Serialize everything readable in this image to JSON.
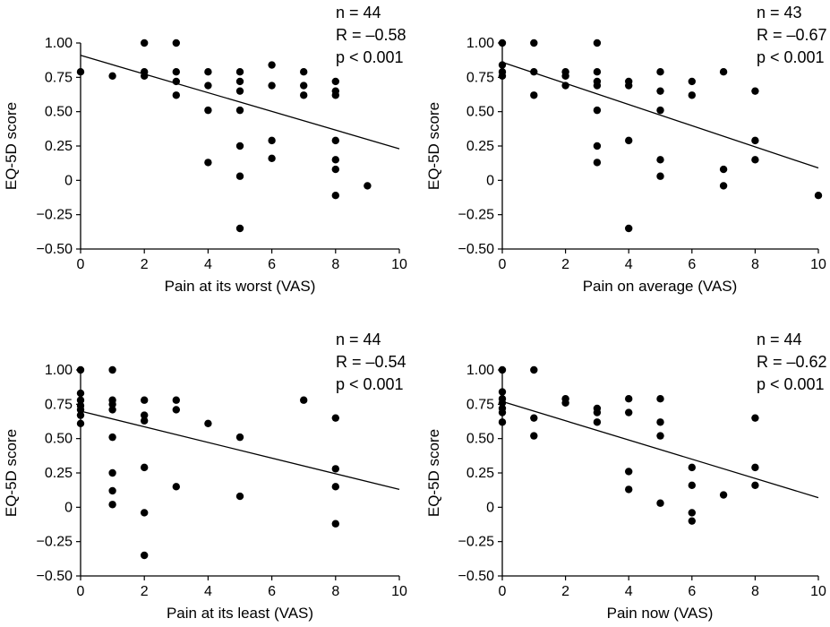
{
  "chart_data": [
    {
      "type": "scatter",
      "xlabel": "Pain at its worst (VAS)",
      "ylabel": "EQ-5D score",
      "xlim": [
        0,
        10
      ],
      "ylim": [
        -0.5,
        1.0
      ],
      "xticks": [
        "0",
        "2",
        "4",
        "6",
        "8",
        "10"
      ],
      "yticks": [
        "−0.50",
        "−0.25",
        "0",
        "0.25",
        "0.50",
        "0.75",
        "1.00"
      ],
      "stats": [
        "n = 44",
        "R = –0.58",
        "p < 0.001"
      ],
      "points": [
        [
          0,
          0.79
        ],
        [
          1,
          0.76
        ],
        [
          2,
          1.0
        ],
        [
          2,
          0.79
        ],
        [
          2,
          0.76
        ],
        [
          3,
          1.0
        ],
        [
          3,
          0.79
        ],
        [
          3,
          0.72
        ],
        [
          3,
          0.62
        ],
        [
          4,
          0.79
        ],
        [
          4,
          0.69
        ],
        [
          4,
          0.51
        ],
        [
          4,
          0.13
        ],
        [
          5,
          0.79
        ],
        [
          5,
          0.72
        ],
        [
          5,
          0.65
        ],
        [
          5,
          0.51
        ],
        [
          5,
          0.25
        ],
        [
          5,
          0.03
        ],
        [
          5,
          -0.35
        ],
        [
          6,
          0.84
        ],
        [
          6,
          0.69
        ],
        [
          6,
          0.29
        ],
        [
          6,
          0.16
        ],
        [
          7,
          0.79
        ],
        [
          7,
          0.69
        ],
        [
          7,
          0.62
        ],
        [
          8,
          0.72
        ],
        [
          8,
          0.65
        ],
        [
          8,
          0.62
        ],
        [
          8,
          0.29
        ],
        [
          8,
          0.15
        ],
        [
          8,
          0.08
        ],
        [
          8,
          -0.11
        ],
        [
          9,
          -0.04
        ]
      ],
      "trend": [
        [
          0,
          0.91
        ],
        [
          10,
          0.23
        ]
      ]
    },
    {
      "type": "scatter",
      "xlabel": "Pain on average (VAS)",
      "ylabel": "EQ-5D score",
      "xlim": [
        0,
        10
      ],
      "ylim": [
        -0.5,
        1.0
      ],
      "xticks": [
        "0",
        "2",
        "4",
        "6",
        "8",
        "10"
      ],
      "yticks": [
        "−0.50",
        "−0.25",
        "0",
        "0.25",
        "0.50",
        "0.75",
        "1.00"
      ],
      "stats": [
        "n = 43",
        "R = –0.67",
        "p < 0.001"
      ],
      "points": [
        [
          0,
          1.0
        ],
        [
          0,
          0.84
        ],
        [
          0,
          0.79
        ],
        [
          0,
          0.76
        ],
        [
          1,
          1.0
        ],
        [
          1,
          0.79
        ],
        [
          1,
          0.62
        ],
        [
          2,
          0.79
        ],
        [
          2,
          0.76
        ],
        [
          2,
          0.69
        ],
        [
          3,
          1.0
        ],
        [
          3,
          0.79
        ],
        [
          3,
          0.72
        ],
        [
          3,
          0.69
        ],
        [
          3,
          0.51
        ],
        [
          3,
          0.25
        ],
        [
          3,
          0.13
        ],
        [
          4,
          0.72
        ],
        [
          4,
          0.69
        ],
        [
          4,
          0.29
        ],
        [
          4,
          -0.35
        ],
        [
          5,
          0.79
        ],
        [
          5,
          0.65
        ],
        [
          5,
          0.51
        ],
        [
          5,
          0.15
        ],
        [
          5,
          0.03
        ],
        [
          6,
          0.72
        ],
        [
          6,
          0.62
        ],
        [
          7,
          0.79
        ],
        [
          7,
          0.08
        ],
        [
          7,
          -0.04
        ],
        [
          8,
          0.65
        ],
        [
          8,
          0.29
        ],
        [
          8,
          0.15
        ],
        [
          10,
          -0.11
        ]
      ],
      "trend": [
        [
          0,
          0.86
        ],
        [
          10,
          0.09
        ]
      ]
    },
    {
      "type": "scatter",
      "xlabel": "Pain at its least (VAS)",
      "ylabel": "EQ-5D score",
      "xlim": [
        0,
        10
      ],
      "ylim": [
        -0.5,
        1.0
      ],
      "xticks": [
        "0",
        "2",
        "4",
        "6",
        "8",
        "10"
      ],
      "yticks": [
        "−0.50",
        "−0.25",
        "0",
        "0.25",
        "0.50",
        "0.75",
        "1.00"
      ],
      "stats": [
        "n = 44",
        "R = –0.54",
        "p < 0.001"
      ],
      "points": [
        [
          0,
          1.0
        ],
        [
          0,
          0.83
        ],
        [
          0,
          0.78
        ],
        [
          0,
          0.74
        ],
        [
          0,
          0.71
        ],
        [
          0,
          0.67
        ],
        [
          0,
          0.61
        ],
        [
          1,
          1.0
        ],
        [
          1,
          0.78
        ],
        [
          1,
          0.75
        ],
        [
          1,
          0.71
        ],
        [
          1,
          0.51
        ],
        [
          1,
          0.25
        ],
        [
          1,
          0.12
        ],
        [
          1,
          0.02
        ],
        [
          2,
          0.78
        ],
        [
          2,
          0.67
        ],
        [
          2,
          0.63
        ],
        [
          2,
          0.29
        ],
        [
          2,
          -0.04
        ],
        [
          2,
          -0.35
        ],
        [
          3,
          0.78
        ],
        [
          3,
          0.71
        ],
        [
          3,
          0.15
        ],
        [
          4,
          0.61
        ],
        [
          5,
          0.51
        ],
        [
          5,
          0.08
        ],
        [
          7,
          0.78
        ],
        [
          8,
          0.65
        ],
        [
          8,
          0.28
        ],
        [
          8,
          0.15
        ],
        [
          8,
          -0.12
        ]
      ],
      "trend": [
        [
          0,
          0.7
        ],
        [
          10,
          0.13
        ]
      ]
    },
    {
      "type": "scatter",
      "xlabel": "Pain now (VAS)",
      "ylabel": "EQ-5D score",
      "xlim": [
        0,
        10
      ],
      "ylim": [
        -0.5,
        1.0
      ],
      "xticks": [
        "0",
        "2",
        "4",
        "6",
        "8",
        "10"
      ],
      "yticks": [
        "−0.50",
        "−0.25",
        "0",
        "0.25",
        "0.50",
        "0.75",
        "1.00"
      ],
      "stats": [
        "n = 44",
        "R = –0.62",
        "p < 0.001"
      ],
      "points": [
        [
          0,
          1.0
        ],
        [
          0,
          0.84
        ],
        [
          0,
          0.79
        ],
        [
          0,
          0.76
        ],
        [
          0,
          0.72
        ],
        [
          0,
          0.69
        ],
        [
          0,
          0.62
        ],
        [
          1,
          1.0
        ],
        [
          1,
          0.65
        ],
        [
          1,
          0.52
        ],
        [
          2,
          0.79
        ],
        [
          2,
          0.76
        ],
        [
          3,
          0.72
        ],
        [
          3,
          0.69
        ],
        [
          3,
          0.62
        ],
        [
          4,
          0.79
        ],
        [
          4,
          0.69
        ],
        [
          4,
          0.26
        ],
        [
          4,
          0.13
        ],
        [
          5,
          0.79
        ],
        [
          5,
          0.62
        ],
        [
          5,
          0.52
        ],
        [
          5,
          0.03
        ],
        [
          6,
          0.29
        ],
        [
          6,
          0.16
        ],
        [
          6,
          -0.04
        ],
        [
          6,
          -0.1
        ],
        [
          7,
          0.09
        ],
        [
          8,
          0.65
        ],
        [
          8,
          0.29
        ],
        [
          8,
          0.16
        ]
      ],
      "trend": [
        [
          0,
          0.77
        ],
        [
          10,
          0.07
        ]
      ]
    }
  ]
}
